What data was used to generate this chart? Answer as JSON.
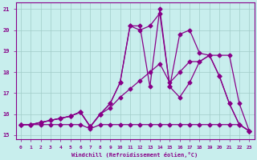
{
  "xlabel": "Windchill (Refroidissement éolien,°C)",
  "background_color": "#c8eeed",
  "grid_color": "#a0ccc8",
  "line_color": "#880088",
  "xlim": [
    -0.5,
    23.5
  ],
  "ylim": [
    14.8,
    21.3
  ],
  "yticks": [
    15,
    16,
    17,
    18,
    19,
    20,
    21
  ],
  "xticks": [
    0,
    1,
    2,
    3,
    4,
    5,
    6,
    7,
    8,
    9,
    10,
    11,
    12,
    13,
    14,
    15,
    16,
    17,
    18,
    19,
    20,
    21,
    22,
    23
  ],
  "line1_x": [
    0,
    1,
    2,
    3,
    4,
    5,
    6,
    7,
    8,
    9,
    10,
    11,
    12,
    13,
    14,
    15,
    16,
    17,
    18,
    19,
    20,
    21,
    22,
    23
  ],
  "line1_y": [
    15.5,
    15.5,
    15.5,
    15.5,
    15.5,
    15.5,
    15.5,
    15.3,
    15.5,
    15.5,
    15.5,
    15.5,
    15.5,
    15.5,
    15.5,
    15.5,
    15.5,
    15.5,
    15.5,
    15.5,
    15.5,
    15.5,
    15.5,
    15.2
  ],
  "line2_x": [
    0,
    1,
    2,
    3,
    4,
    5,
    6,
    7,
    8,
    9,
    10,
    11,
    12,
    13,
    14,
    15,
    16,
    17,
    18,
    19,
    20,
    21,
    22,
    23
  ],
  "line2_y": [
    15.5,
    15.5,
    15.6,
    15.7,
    15.8,
    15.9,
    16.1,
    15.4,
    16.0,
    16.3,
    16.8,
    17.2,
    17.6,
    18.0,
    18.4,
    17.5,
    18.0,
    18.5,
    18.5,
    18.8,
    18.8,
    18.8,
    16.5,
    15.2
  ],
  "line3_x": [
    0,
    1,
    2,
    3,
    4,
    5,
    6,
    7,
    8,
    9,
    10,
    11,
    12,
    13,
    14,
    15,
    16,
    17,
    18,
    19,
    20,
    21,
    22,
    23
  ],
  "line3_y": [
    15.5,
    15.5,
    15.6,
    15.7,
    15.8,
    15.9,
    16.1,
    15.4,
    16.0,
    16.5,
    17.5,
    20.2,
    20.2,
    17.3,
    21.0,
    17.3,
    19.8,
    20.0,
    18.9,
    18.8,
    17.8,
    16.5,
    15.5,
    15.2
  ],
  "line4_x": [
    0,
    1,
    2,
    3,
    4,
    5,
    6,
    7,
    8,
    9,
    10,
    11,
    12,
    13,
    14,
    15,
    16,
    17,
    18,
    19,
    20,
    21,
    22,
    23
  ],
  "line4_y": [
    15.5,
    15.5,
    15.6,
    15.7,
    15.8,
    15.9,
    16.1,
    15.4,
    16.0,
    16.5,
    17.5,
    20.2,
    20.0,
    20.2,
    20.8,
    17.3,
    16.8,
    17.5,
    18.5,
    18.8,
    17.8,
    16.5,
    15.5,
    15.2
  ]
}
